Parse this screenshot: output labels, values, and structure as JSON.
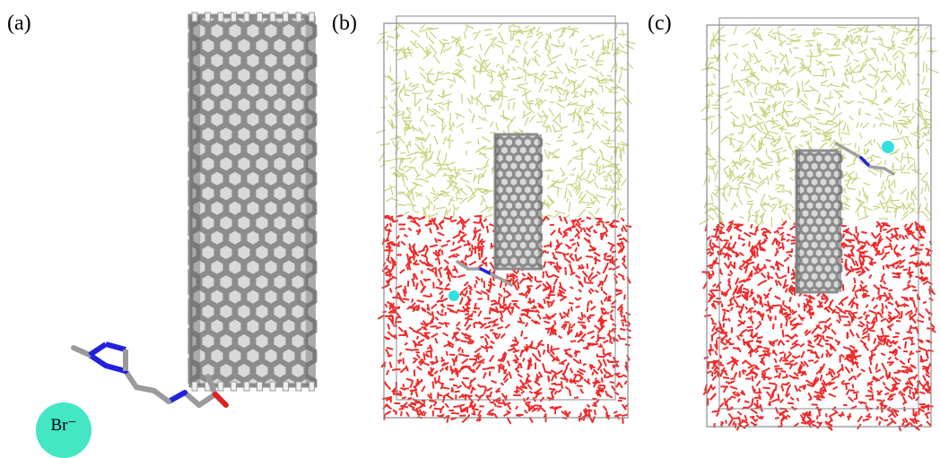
{
  "panels": [
    {
      "label": "(a)",
      "content": "nanotube-with-ligand"
    },
    {
      "label": "(b)",
      "content": "simulation-box"
    },
    {
      "label": "(c)",
      "content": "simulation-box"
    }
  ],
  "ion": {
    "label": "Br⁻",
    "color": "#44e6c4"
  },
  "colors": {
    "tube_carbon": "#8c8c8c",
    "tube_dark": "#555555",
    "oil_phase": "#c8d07a",
    "water_phase": "#ee2a2a",
    "box_edge": "#8a8a8a",
    "nitrogen": "#2222dd",
    "oxygen": "#dd2222",
    "hydrogen": "#eeeeee",
    "bromide": "#33e0e0"
  }
}
